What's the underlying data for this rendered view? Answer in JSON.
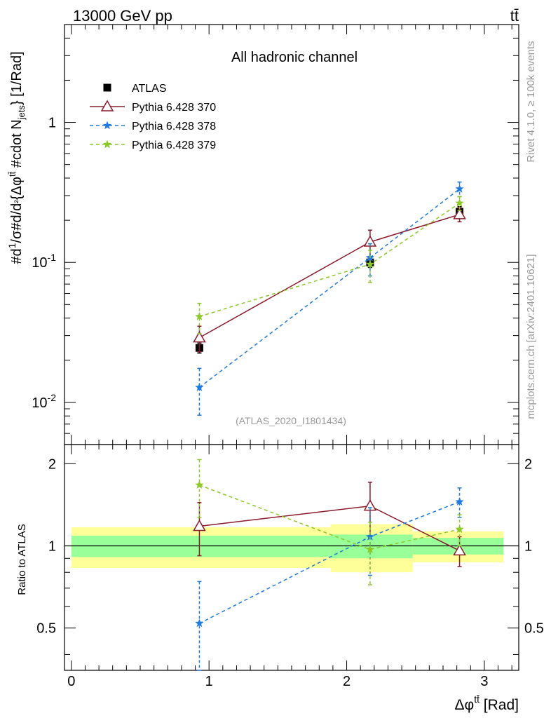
{
  "header": {
    "energy_label": "13000 GeV pp",
    "process_label": "tt̄",
    "channel_title": "All hadronic channel",
    "analysis_id": "(ATLAS_2020_I1801434)",
    "side_label_top": "Rivet 4.1.0, ≥ 100k events",
    "side_label_bottom": "mcplots.cern.ch [arXiv:2401.10621]"
  },
  "colors": {
    "atlas": "#000000",
    "p370": "#8b1a2b",
    "p378": "#1f7ae0",
    "p379": "#8ac926",
    "band_inner": "#99ff99",
    "band_outer": "#ffff99"
  },
  "chart_data": {
    "type": "scatter",
    "title": "All hadronic channel",
    "xlabel": "Δφ^{tt̄} [Rad]",
    "ylabel": "#d1/σ #d/d{Δφ^{tt̄} #cdot N_{jets}} [1/Rad]",
    "ratio_ylabel": "Ratio to ATLAS",
    "xlim": [
      -0.05,
      3.25
    ],
    "ylim": [
      0.005,
      5.0
    ],
    "ratio_ylim": [
      0.35,
      2.35
    ],
    "x_ticks": [
      "0",
      "1",
      "2",
      "3"
    ],
    "y_ticks": [
      "10^{-2}",
      "10^{-1}",
      "1"
    ],
    "ratio_ticks": [
      "0.5",
      "1",
      "2"
    ],
    "bins": [
      0.0,
      1.885,
      2.48,
      3.14
    ],
    "bin_centers": [
      0.93,
      2.17,
      2.82
    ],
    "series": [
      {
        "name": "ATLAS",
        "marker": "square",
        "values": [
          0.0245,
          0.1,
          0.23
        ],
        "err": [
          0.002,
          0.008,
          0.02
        ]
      },
      {
        "name": "Pythia 6.428 370",
        "marker": "triangle",
        "line": "solid",
        "values": [
          0.029,
          0.14,
          0.22
        ],
        "err": [
          0.006,
          0.03,
          0.025
        ]
      },
      {
        "name": "Pythia 6.428 378",
        "marker": "star",
        "line": "dashed",
        "values": [
          0.0128,
          0.108,
          0.335
        ],
        "err": [
          0.0047,
          0.028,
          0.04
        ]
      },
      {
        "name": "Pythia 6.428 379",
        "marker": "star",
        "line": "dashed",
        "values": [
          0.041,
          0.097,
          0.265
        ],
        "err": [
          0.01,
          0.025,
          0.03
        ]
      }
    ],
    "ratio": [
      {
        "name": "Pythia 6.428 370",
        "values": [
          1.18,
          1.4,
          0.96
        ],
        "err": [
          0.26,
          0.31,
          0.12
        ]
      },
      {
        "name": "Pythia 6.428 378",
        "values": [
          0.52,
          1.08,
          1.45
        ],
        "err": [
          0.22,
          0.3,
          0.18
        ]
      },
      {
        "name": "Pythia 6.428 379",
        "values": [
          1.67,
          0.97,
          1.15
        ],
        "err": [
          0.4,
          0.25,
          0.15
        ]
      }
    ],
    "uncertainty_bands": {
      "inner": [
        [
          0.91,
          1.09
        ],
        [
          0.9,
          1.1
        ],
        [
          0.93,
          1.07
        ]
      ],
      "outer": [
        [
          0.83,
          1.17
        ],
        [
          0.8,
          1.2
        ],
        [
          0.87,
          1.13
        ]
      ]
    }
  }
}
